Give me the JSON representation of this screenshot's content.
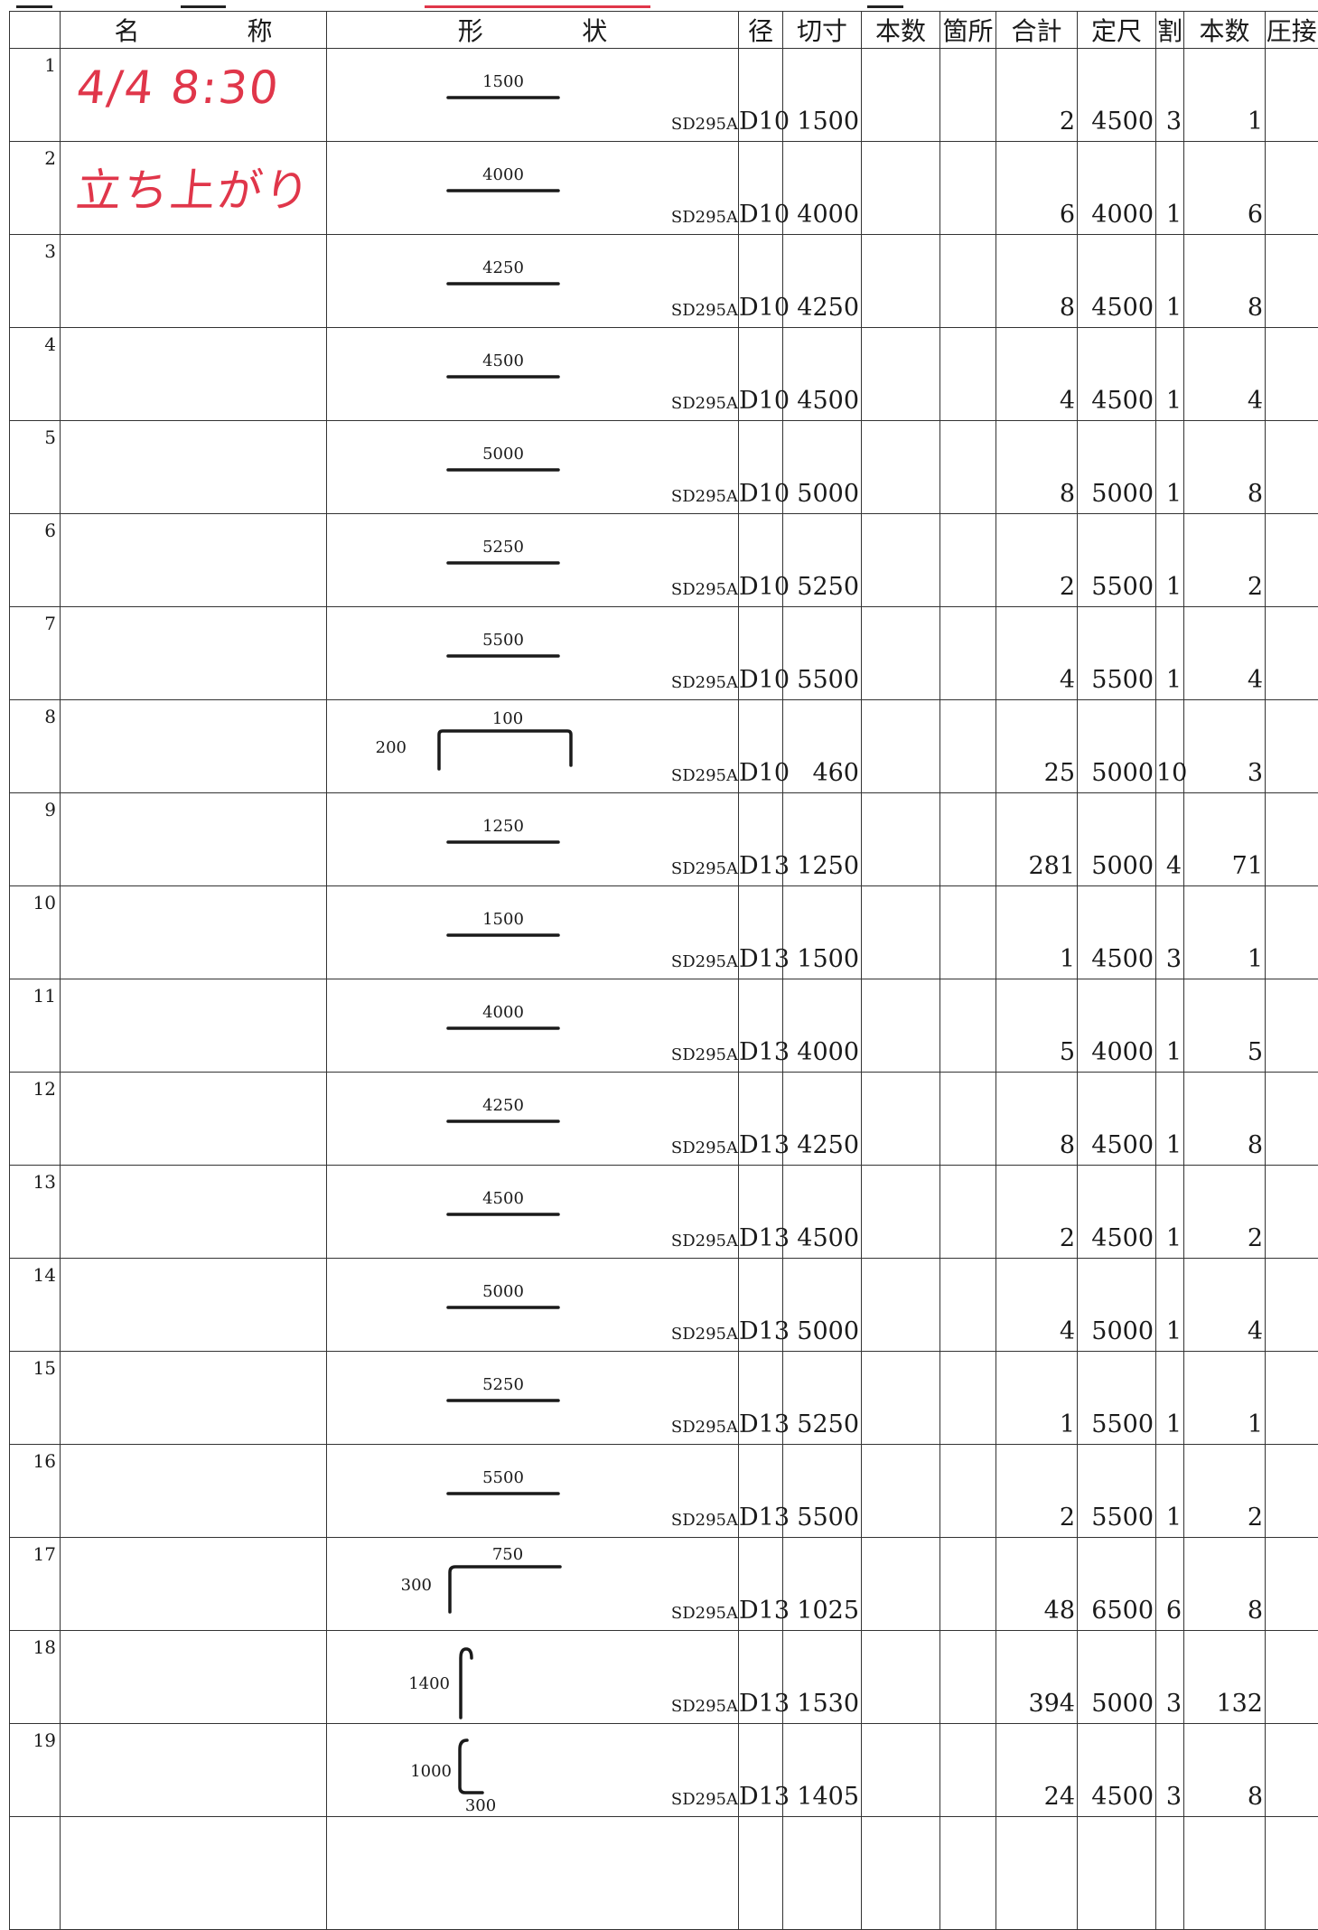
{
  "header": {
    "no_label": "",
    "name_chars": [
      "名",
      "称"
    ],
    "shape_chars": [
      "形",
      "状"
    ],
    "diameter": "径",
    "cut_length": "切寸",
    "count": "本数",
    "places": "箇所",
    "total": "合計",
    "stock_length": "定尺",
    "split": "割",
    "pieces": "本数",
    "pressure": "圧接"
  },
  "handwritten": {
    "date_time": "4/4 8:30",
    "note": "立ち上がり"
  },
  "rows": [
    {
      "no": "1",
      "shape": "straight",
      "dims": [
        "1500"
      ],
      "grade": "SD295A",
      "dia": "D10",
      "cut": "1500",
      "count": "",
      "places": "",
      "total": "2",
      "stock": "4500",
      "split": "3",
      "pieces": "1"
    },
    {
      "no": "2",
      "shape": "straight",
      "dims": [
        "4000"
      ],
      "grade": "SD295A",
      "dia": "D10",
      "cut": "4000",
      "count": "",
      "places": "",
      "total": "6",
      "stock": "4000",
      "split": "1",
      "pieces": "6"
    },
    {
      "no": "3",
      "shape": "straight",
      "dims": [
        "4250"
      ],
      "grade": "SD295A",
      "dia": "D10",
      "cut": "4250",
      "count": "",
      "places": "",
      "total": "8",
      "stock": "4500",
      "split": "1",
      "pieces": "8"
    },
    {
      "no": "4",
      "shape": "straight",
      "dims": [
        "4500"
      ],
      "grade": "SD295A",
      "dia": "D10",
      "cut": "4500",
      "count": "",
      "places": "",
      "total": "4",
      "stock": "4500",
      "split": "1",
      "pieces": "4"
    },
    {
      "no": "5",
      "shape": "straight",
      "dims": [
        "5000"
      ],
      "grade": "SD295A",
      "dia": "D10",
      "cut": "5000",
      "count": "",
      "places": "",
      "total": "8",
      "stock": "5000",
      "split": "1",
      "pieces": "8"
    },
    {
      "no": "6",
      "shape": "straight",
      "dims": [
        "5250"
      ],
      "grade": "SD295A",
      "dia": "D10",
      "cut": "5250",
      "count": "",
      "places": "",
      "total": "2",
      "stock": "5500",
      "split": "1",
      "pieces": "2"
    },
    {
      "no": "7",
      "shape": "straight",
      "dims": [
        "5500"
      ],
      "grade": "SD295A",
      "dia": "D10",
      "cut": "5500",
      "count": "",
      "places": "",
      "total": "4",
      "stock": "5500",
      "split": "1",
      "pieces": "4"
    },
    {
      "no": "8",
      "shape": "u_bar",
      "dims": [
        "100",
        "200"
      ],
      "grade": "SD295A",
      "dia": "D10",
      "cut": "460",
      "count": "",
      "places": "",
      "total": "25",
      "stock": "5000",
      "split": "10",
      "pieces": "3"
    },
    {
      "no": "9",
      "shape": "straight",
      "dims": [
        "1250"
      ],
      "grade": "SD295A",
      "dia": "D13",
      "cut": "1250",
      "count": "",
      "places": "",
      "total": "281",
      "stock": "5000",
      "split": "4",
      "pieces": "71"
    },
    {
      "no": "10",
      "shape": "straight",
      "dims": [
        "1500"
      ],
      "grade": "SD295A",
      "dia": "D13",
      "cut": "1500",
      "count": "",
      "places": "",
      "total": "1",
      "stock": "4500",
      "split": "3",
      "pieces": "1"
    },
    {
      "no": "11",
      "shape": "straight",
      "dims": [
        "4000"
      ],
      "grade": "SD295A",
      "dia": "D13",
      "cut": "4000",
      "count": "",
      "places": "",
      "total": "5",
      "stock": "4000",
      "split": "1",
      "pieces": "5"
    },
    {
      "no": "12",
      "shape": "straight",
      "dims": [
        "4250"
      ],
      "grade": "SD295A",
      "dia": "D13",
      "cut": "4250",
      "count": "",
      "places": "",
      "total": "8",
      "stock": "4500",
      "split": "1",
      "pieces": "8"
    },
    {
      "no": "13",
      "shape": "straight",
      "dims": [
        "4500"
      ],
      "grade": "SD295A",
      "dia": "D13",
      "cut": "4500",
      "count": "",
      "places": "",
      "total": "2",
      "stock": "4500",
      "split": "1",
      "pieces": "2"
    },
    {
      "no": "14",
      "shape": "straight",
      "dims": [
        "5000"
      ],
      "grade": "SD295A",
      "dia": "D13",
      "cut": "5000",
      "count": "",
      "places": "",
      "total": "4",
      "stock": "5000",
      "split": "1",
      "pieces": "4"
    },
    {
      "no": "15",
      "shape": "straight",
      "dims": [
        "5250"
      ],
      "grade": "SD295A",
      "dia": "D13",
      "cut": "5250",
      "count": "",
      "places": "",
      "total": "1",
      "stock": "5500",
      "split": "1",
      "pieces": "1"
    },
    {
      "no": "16",
      "shape": "straight",
      "dims": [
        "5500"
      ],
      "grade": "SD295A",
      "dia": "D13",
      "cut": "5500",
      "count": "",
      "places": "",
      "total": "2",
      "stock": "5500",
      "split": "1",
      "pieces": "2"
    },
    {
      "no": "17",
      "shape": "l_bar",
      "dims": [
        "750",
        "300"
      ],
      "grade": "SD295A",
      "dia": "D13",
      "cut": "1025",
      "count": "",
      "places": "",
      "total": "48",
      "stock": "6500",
      "split": "6",
      "pieces": "8"
    },
    {
      "no": "18",
      "shape": "hook_bar",
      "dims": [
        "1400"
      ],
      "grade": "SD295A",
      "dia": "D13",
      "cut": "1530",
      "count": "",
      "places": "",
      "total": "394",
      "stock": "5000",
      "split": "3",
      "pieces": "132"
    },
    {
      "no": "19",
      "shape": "j_bar",
      "dims": [
        "1000",
        "300"
      ],
      "grade": "SD295A",
      "dia": "D13",
      "cut": "1405",
      "count": "",
      "places": "",
      "total": "24",
      "stock": "4500",
      "split": "3",
      "pieces": "8"
    }
  ]
}
